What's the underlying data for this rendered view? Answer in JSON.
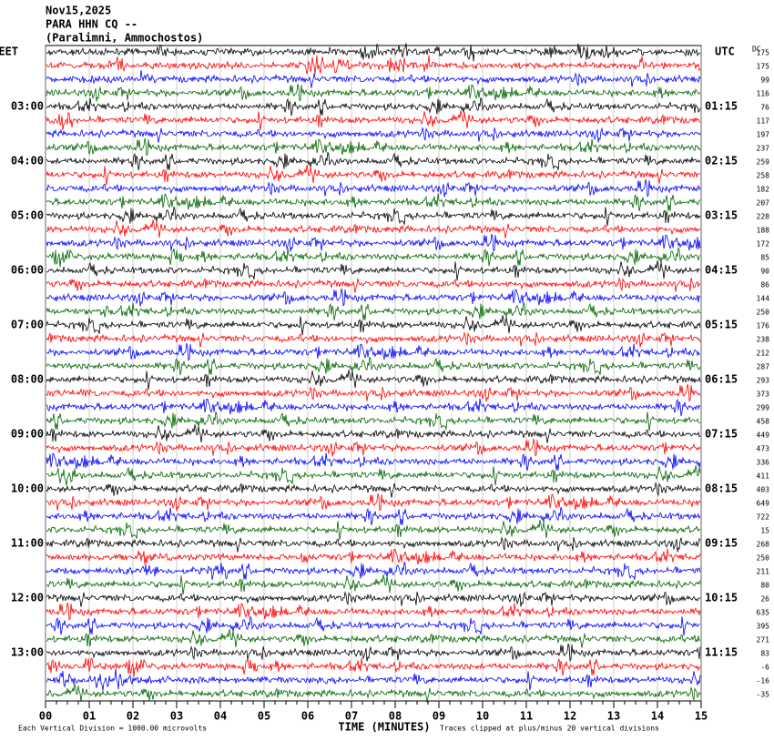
{
  "chart_data": {
    "type": "helicorder",
    "title_lines": [
      "Nov15,2025",
      "PARA HHN CQ --",
      "(Paralimni, Ammochostos)"
    ],
    "left_header": "EET",
    "right_header": "UTC",
    "dc_header": "DC",
    "left_labels": [
      "03:00",
      "04:00",
      "05:00",
      "06:00",
      "07:00",
      "08:00",
      "09:00",
      "10:00",
      "11:00",
      "12:00",
      "13:00"
    ],
    "right_labels": [
      "01:15",
      "02:15",
      "03:15",
      "04:15",
      "05:15",
      "06:15",
      "07:15",
      "08:15",
      "09:15",
      "10:15",
      "11:15"
    ],
    "dc_values": [
      175,
      175,
      99,
      116,
      76,
      117,
      197,
      237,
      259,
      258,
      182,
      207,
      228,
      188,
      172,
      85,
      90,
      86,
      144,
      250,
      176,
      238,
      212,
      287,
      293,
      373,
      299,
      458,
      449,
      473,
      336,
      411,
      403,
      649,
      722,
      15,
      268,
      250,
      211,
      80,
      26,
      635,
      395,
      271,
      83,
      -6,
      -16,
      -35
    ],
    "colors": [
      "#000000",
      "#ff0000",
      "#0000ff",
      "#006400"
    ],
    "xlim": [
      0,
      15
    ],
    "xticks": [
      {
        "value": 0,
        "label": "00"
      },
      {
        "value": 1,
        "label": "01"
      },
      {
        "value": 2,
        "label": "02"
      },
      {
        "value": 3,
        "label": "03"
      },
      {
        "value": 4,
        "label": "04"
      },
      {
        "value": 5,
        "label": "05"
      },
      {
        "value": 6,
        "label": "06"
      },
      {
        "value": 7,
        "label": "07"
      },
      {
        "value": 8,
        "label": "08"
      },
      {
        "value": 9,
        "label": "09"
      },
      {
        "value": 10,
        "label": "10"
      },
      {
        "value": 11,
        "label": "11"
      },
      {
        "value": 12,
        "label": "12"
      },
      {
        "value": 13,
        "label": "13"
      },
      {
        "value": 14,
        "label": "14"
      },
      15
    ],
    "xlabel": "TIME (MINUTES)",
    "footer_left": "Each Vertical Division = 1000.00 microvolts",
    "footer_right": "Traces clipped at plus/minus 20 vertical divisions",
    "grid": true
  }
}
